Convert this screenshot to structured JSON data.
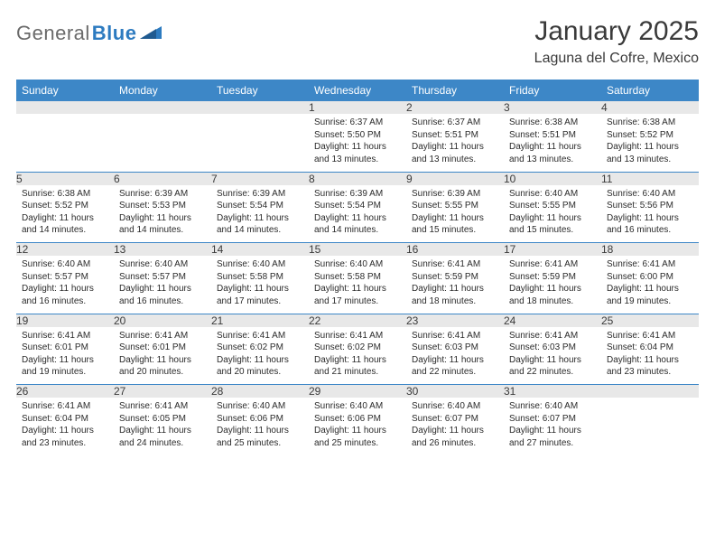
{
  "logo": {
    "word1": "General",
    "word2": "Blue"
  },
  "title": "January 2025",
  "location": "Laguna del Cofre, Mexico",
  "colors": {
    "header_bg": "#3d87c7",
    "header_text": "#ffffff",
    "daynum_bg": "#e8e8e8",
    "row_border": "#3d87c7",
    "page_bg": "#ffffff",
    "text": "#2b2b2b",
    "logo_gray": "#6a6a6a",
    "logo_blue": "#2d7bc0"
  },
  "fonts": {
    "title_size_pt": 22,
    "location_size_pt": 12,
    "header_size_pt": 9,
    "daynum_size_pt": 9,
    "detail_size_pt": 7.5
  },
  "dayNames": [
    "Sunday",
    "Monday",
    "Tuesday",
    "Wednesday",
    "Thursday",
    "Friday",
    "Saturday"
  ],
  "weeks": [
    [
      null,
      null,
      null,
      {
        "n": "1",
        "sr": "6:37 AM",
        "ss": "5:50 PM",
        "dl": "11 hours and 13 minutes."
      },
      {
        "n": "2",
        "sr": "6:37 AM",
        "ss": "5:51 PM",
        "dl": "11 hours and 13 minutes."
      },
      {
        "n": "3",
        "sr": "6:38 AM",
        "ss": "5:51 PM",
        "dl": "11 hours and 13 minutes."
      },
      {
        "n": "4",
        "sr": "6:38 AM",
        "ss": "5:52 PM",
        "dl": "11 hours and 13 minutes."
      }
    ],
    [
      {
        "n": "5",
        "sr": "6:38 AM",
        "ss": "5:52 PM",
        "dl": "11 hours and 14 minutes."
      },
      {
        "n": "6",
        "sr": "6:39 AM",
        "ss": "5:53 PM",
        "dl": "11 hours and 14 minutes."
      },
      {
        "n": "7",
        "sr": "6:39 AM",
        "ss": "5:54 PM",
        "dl": "11 hours and 14 minutes."
      },
      {
        "n": "8",
        "sr": "6:39 AM",
        "ss": "5:54 PM",
        "dl": "11 hours and 14 minutes."
      },
      {
        "n": "9",
        "sr": "6:39 AM",
        "ss": "5:55 PM",
        "dl": "11 hours and 15 minutes."
      },
      {
        "n": "10",
        "sr": "6:40 AM",
        "ss": "5:55 PM",
        "dl": "11 hours and 15 minutes."
      },
      {
        "n": "11",
        "sr": "6:40 AM",
        "ss": "5:56 PM",
        "dl": "11 hours and 16 minutes."
      }
    ],
    [
      {
        "n": "12",
        "sr": "6:40 AM",
        "ss": "5:57 PM",
        "dl": "11 hours and 16 minutes."
      },
      {
        "n": "13",
        "sr": "6:40 AM",
        "ss": "5:57 PM",
        "dl": "11 hours and 16 minutes."
      },
      {
        "n": "14",
        "sr": "6:40 AM",
        "ss": "5:58 PM",
        "dl": "11 hours and 17 minutes."
      },
      {
        "n": "15",
        "sr": "6:40 AM",
        "ss": "5:58 PM",
        "dl": "11 hours and 17 minutes."
      },
      {
        "n": "16",
        "sr": "6:41 AM",
        "ss": "5:59 PM",
        "dl": "11 hours and 18 minutes."
      },
      {
        "n": "17",
        "sr": "6:41 AM",
        "ss": "5:59 PM",
        "dl": "11 hours and 18 minutes."
      },
      {
        "n": "18",
        "sr": "6:41 AM",
        "ss": "6:00 PM",
        "dl": "11 hours and 19 minutes."
      }
    ],
    [
      {
        "n": "19",
        "sr": "6:41 AM",
        "ss": "6:01 PM",
        "dl": "11 hours and 19 minutes."
      },
      {
        "n": "20",
        "sr": "6:41 AM",
        "ss": "6:01 PM",
        "dl": "11 hours and 20 minutes."
      },
      {
        "n": "21",
        "sr": "6:41 AM",
        "ss": "6:02 PM",
        "dl": "11 hours and 20 minutes."
      },
      {
        "n": "22",
        "sr": "6:41 AM",
        "ss": "6:02 PM",
        "dl": "11 hours and 21 minutes."
      },
      {
        "n": "23",
        "sr": "6:41 AM",
        "ss": "6:03 PM",
        "dl": "11 hours and 22 minutes."
      },
      {
        "n": "24",
        "sr": "6:41 AM",
        "ss": "6:03 PM",
        "dl": "11 hours and 22 minutes."
      },
      {
        "n": "25",
        "sr": "6:41 AM",
        "ss": "6:04 PM",
        "dl": "11 hours and 23 minutes."
      }
    ],
    [
      {
        "n": "26",
        "sr": "6:41 AM",
        "ss": "6:04 PM",
        "dl": "11 hours and 23 minutes."
      },
      {
        "n": "27",
        "sr": "6:41 AM",
        "ss": "6:05 PM",
        "dl": "11 hours and 24 minutes."
      },
      {
        "n": "28",
        "sr": "6:40 AM",
        "ss": "6:06 PM",
        "dl": "11 hours and 25 minutes."
      },
      {
        "n": "29",
        "sr": "6:40 AM",
        "ss": "6:06 PM",
        "dl": "11 hours and 25 minutes."
      },
      {
        "n": "30",
        "sr": "6:40 AM",
        "ss": "6:07 PM",
        "dl": "11 hours and 26 minutes."
      },
      {
        "n": "31",
        "sr": "6:40 AM",
        "ss": "6:07 PM",
        "dl": "11 hours and 27 minutes."
      },
      null
    ]
  ],
  "labels": {
    "sunrise": "Sunrise: ",
    "sunset": "Sunset: ",
    "daylight": "Daylight: "
  }
}
